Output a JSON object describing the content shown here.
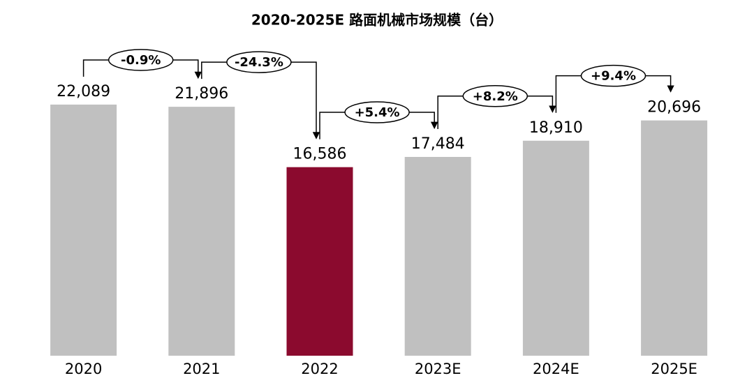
{
  "chart_data": {
    "type": "bar",
    "title": "2020-2025E 路面机械市场规模（台）",
    "categories": [
      "2020",
      "2021",
      "2022",
      "2023E",
      "2024E",
      "2025E"
    ],
    "values": [
      22089,
      21896,
      16586,
      17484,
      18910,
      20696
    ],
    "value_labels": [
      "22,089",
      "21,896",
      "16,586",
      "17,484",
      "18,910",
      "20,696"
    ],
    "colors": [
      "#c0c0c0",
      "#c0c0c0",
      "#8b0a2e",
      "#c0c0c0",
      "#c0c0c0",
      "#c0c0c0"
    ],
    "growth_labels": [
      "-0.9%",
      "-24.3%",
      "+5.4%",
      "+8.2%",
      "+9.4%"
    ],
    "ylim": [
      0,
      25000
    ]
  }
}
